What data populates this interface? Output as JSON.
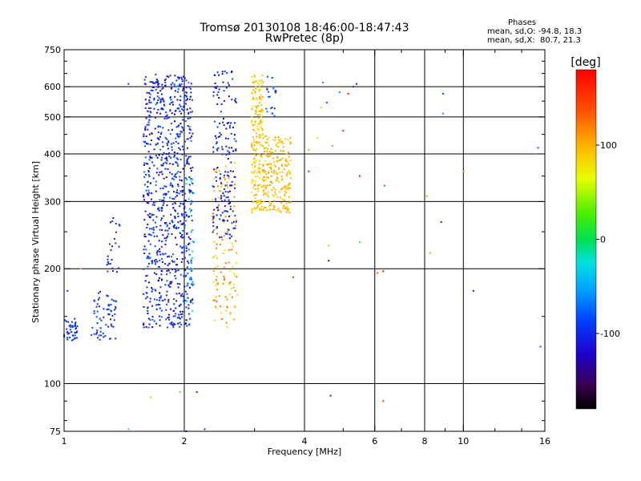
{
  "header": {
    "title": "Tromsø 20130108 18:46:00-18:47:43",
    "subtitle": "RwPretec (8p)",
    "stats_title": "Phases",
    "stats_o": "mean, sd,O: -94.8, 18.3",
    "stats_x": "mean, sd,X:  80.7, 21.3"
  },
  "colorbar": {
    "label": "[deg]",
    "ticks": [
      {
        "value": 100,
        "label": "100"
      },
      {
        "value": 0,
        "label": "0"
      },
      {
        "value": -100,
        "label": "-100"
      }
    ],
    "range": [
      -180,
      180
    ]
  },
  "chart_data": {
    "type": "scatter",
    "xlabel": "Frequency [MHz]",
    "ylabel": "Stationary phase Virtual Height [km]",
    "xscale": "log",
    "yscale": "log",
    "xlim": [
      1,
      16
    ],
    "ylim": [
      75,
      750
    ],
    "xticks": [
      {
        "value": 1,
        "label": "1"
      },
      {
        "value": 2,
        "label": "2"
      },
      {
        "value": 4,
        "label": "4"
      },
      {
        "value": 6,
        "label": "6"
      },
      {
        "value": 8,
        "label": "8"
      },
      {
        "value": 10,
        "label": "10"
      },
      {
        "value": 16,
        "label": "16"
      }
    ],
    "yticks": [
      {
        "value": 75,
        "label": "75"
      },
      {
        "value": 100,
        "label": "100"
      },
      {
        "value": 200,
        "label": "200"
      },
      {
        "value": 300,
        "label": "300"
      },
      {
        "value": 400,
        "label": "400"
      },
      {
        "value": 500,
        "label": "500"
      },
      {
        "value": 600,
        "label": "600"
      },
      {
        "value": 750,
        "label": "750"
      }
    ],
    "gridlines_x": [
      2,
      4,
      6,
      8,
      10
    ],
    "gridlines_y": [
      100,
      200,
      300,
      400,
      500,
      600
    ],
    "grid": true,
    "clusters": [
      {
        "f": [
          1.0,
          1.08
        ],
        "h": [
          128,
          148
        ],
        "phase": [
          -105,
          -85
        ],
        "count": 45
      },
      {
        "f": [
          1.17,
          1.35
        ],
        "h": [
          130,
          175
        ],
        "phase": [
          -110,
          -80
        ],
        "count": 65
      },
      {
        "f": [
          1.28,
          1.38
        ],
        "h": [
          195,
          280
        ],
        "phase": [
          -110,
          -85
        ],
        "count": 25
      },
      {
        "f": [
          1.58,
          2.1
        ],
        "h": [
          140,
          650
        ],
        "phase": [
          -130,
          -70
        ],
        "count": 850
      },
      {
        "f": [
          2.02,
          2.12
        ],
        "h": [
          150,
          360
        ],
        "phase": [
          -60,
          -20
        ],
        "count": 30
      },
      {
        "f": [
          2.35,
          2.72
        ],
        "h": [
          140,
          380
        ],
        "phase": [
          70,
          130
        ],
        "count": 120
      },
      {
        "f": [
          2.35,
          2.7
        ],
        "h": [
          240,
          660
        ],
        "phase": [
          -130,
          -80
        ],
        "count": 170
      },
      {
        "f": [
          2.95,
          3.15
        ],
        "h": [
          280,
          650
        ],
        "phase": [
          70,
          110
        ],
        "count": 200
      },
      {
        "f": [
          3.15,
          3.7
        ],
        "h": [
          280,
          450
        ],
        "phase": [
          80,
          110
        ],
        "count": 220
      },
      {
        "f": [
          3.2,
          3.4
        ],
        "h": [
          500,
          650
        ],
        "phase": [
          -110,
          -60
        ],
        "count": 20
      }
    ],
    "scattered_points": [
      {
        "f": 1.02,
        "h": 175,
        "phase": -100
      },
      {
        "f": 1.1,
        "h": 200,
        "phase": 105
      },
      {
        "f": 1.45,
        "h": 610,
        "phase": -100
      },
      {
        "f": 1.65,
        "h": 92,
        "phase": 100
      },
      {
        "f": 1.95,
        "h": 95,
        "phase": 30
      },
      {
        "f": 2.02,
        "h": 75,
        "phase": -95
      },
      {
        "f": 2.15,
        "h": 95,
        "phase": -110
      },
      {
        "f": 2.25,
        "h": 76,
        "phase": -100
      },
      {
        "f": 1.45,
        "h": 76,
        "phase": -20
      },
      {
        "f": 3.75,
        "h": 190,
        "phase": 150
      },
      {
        "f": 4.1,
        "h": 410,
        "phase": 110
      },
      {
        "f": 4.1,
        "h": 360,
        "phase": 170
      },
      {
        "f": 4.3,
        "h": 440,
        "phase": 80
      },
      {
        "f": 4.4,
        "h": 530,
        "phase": 90
      },
      {
        "f": 4.45,
        "h": 615,
        "phase": -60
      },
      {
        "f": 4.55,
        "h": 545,
        "phase": -80
      },
      {
        "f": 4.6,
        "h": 230,
        "phase": 100
      },
      {
        "f": 4.65,
        "h": 93,
        "phase": -100
      },
      {
        "f": 4.7,
        "h": 420,
        "phase": 110
      },
      {
        "f": 4.85,
        "h": 600,
        "phase": 130
      },
      {
        "f": 4.9,
        "h": 580,
        "phase": -60
      },
      {
        "f": 5.0,
        "h": 460,
        "phase": 170
      },
      {
        "f": 5.15,
        "h": 575,
        "phase": 175
      },
      {
        "f": 5.3,
        "h": 600,
        "phase": -100
      },
      {
        "f": 5.5,
        "h": 350,
        "phase": 180
      },
      {
        "f": 5.5,
        "h": 235,
        "phase": 30
      },
      {
        "f": 5.4,
        "h": 610,
        "phase": -110
      },
      {
        "f": 6.1,
        "h": 195,
        "phase": 130
      },
      {
        "f": 6.3,
        "h": 90,
        "phase": 150
      },
      {
        "f": 6.35,
        "h": 330,
        "phase": -60
      },
      {
        "f": 6.3,
        "h": 197,
        "phase": 180
      },
      {
        "f": 4.6,
        "h": 210,
        "phase": -130
      },
      {
        "f": 8.1,
        "h": 310,
        "phase": 115
      },
      {
        "f": 8.25,
        "h": 220,
        "phase": 110
      },
      {
        "f": 8.8,
        "h": 265,
        "phase": -100
      },
      {
        "f": 8.9,
        "h": 510,
        "phase": -60
      },
      {
        "f": 8.9,
        "h": 575,
        "phase": -90
      },
      {
        "f": 10.0,
        "h": 360,
        "phase": 110
      },
      {
        "f": 10.6,
        "h": 175,
        "phase": -110
      },
      {
        "f": 15.4,
        "h": 415,
        "phase": 170
      },
      {
        "f": 15.6,
        "h": 125,
        "phase": -80
      }
    ]
  }
}
